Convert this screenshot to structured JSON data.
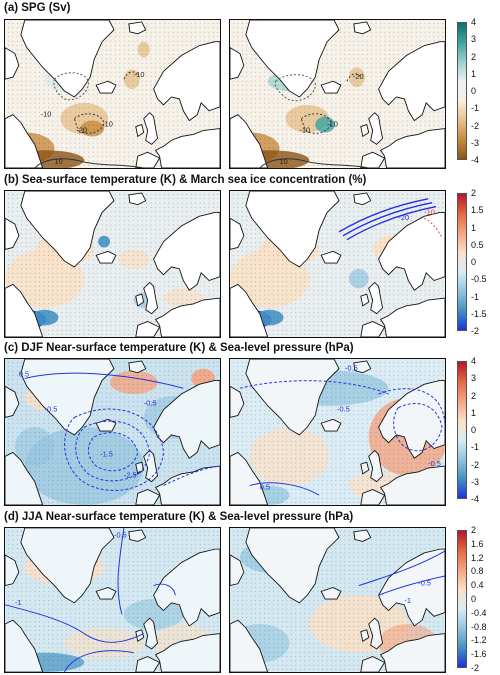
{
  "panels": [
    {
      "title": "(a) SPG (Sv)",
      "colorbar": {
        "ticks": [
          "4",
          "3",
          "2",
          "1",
          "0",
          "-1",
          "-2",
          "-3",
          "-4"
        ],
        "colors": [
          "#0d6f6f",
          "#3fa3a3",
          "#9ad1cf",
          "#e9f2f1",
          "#f7efe2",
          "#e6c08c",
          "#c78a3f",
          "#8c5417"
        ]
      },
      "contour_labels": [
        "-10",
        "-20",
        "-10",
        "-10",
        "10",
        "-20",
        "-10",
        "-10",
        "10"
      ]
    },
    {
      "title": "(b) Sea-surface temperature (K) & March sea ice concentration (%)",
      "colorbar": {
        "ticks": [
          "2",
          "1.5",
          "1",
          "0.5",
          "0",
          "-0.5",
          "-1",
          "-1.5",
          "-2"
        ],
        "colors": [
          "#b2182b",
          "#e3693f",
          "#f4a582",
          "#fbe0c4",
          "#d8ecf6",
          "#92c5de",
          "#4393c3",
          "#1a33d9"
        ]
      },
      "contour_labels": [
        "-20",
        "-10"
      ]
    },
    {
      "title": "(c) DJF Near-surface temperature (K) & Sea-level pressure (hPa)",
      "colorbar": {
        "ticks": [
          "4",
          "3",
          "2",
          "1",
          "0",
          "-1",
          "-2",
          "-3",
          "-4"
        ],
        "colors": [
          "#b2182b",
          "#e3693f",
          "#f4a582",
          "#fbe0c4",
          "#d8ecf6",
          "#92c5de",
          "#4393c3",
          "#1a33d9"
        ]
      },
      "contour_labels": [
        "0.5",
        "-0.5",
        "-1.5",
        "-2.5",
        "-0.5",
        "-0.5",
        "-0.5",
        "0.5",
        "-0.5"
      ]
    },
    {
      "title": "(d) JJA Near-surface temperature (K) & Sea-level pressure (hPa)",
      "colorbar": {
        "ticks": [
          "2",
          "1.6",
          "1.2",
          "0.8",
          "0.4",
          "0",
          "-0.4",
          "-0.8",
          "-1.2",
          "-1.6",
          "-2"
        ],
        "colors": [
          "#b2182b",
          "#e3693f",
          "#f4a582",
          "#fbe0c4",
          "#d8ecf6",
          "#92c5de",
          "#4393c3",
          "#1a33d9"
        ]
      },
      "contour_labels": [
        "-0.5",
        "-1",
        "-0.5",
        "-1"
      ]
    }
  ]
}
